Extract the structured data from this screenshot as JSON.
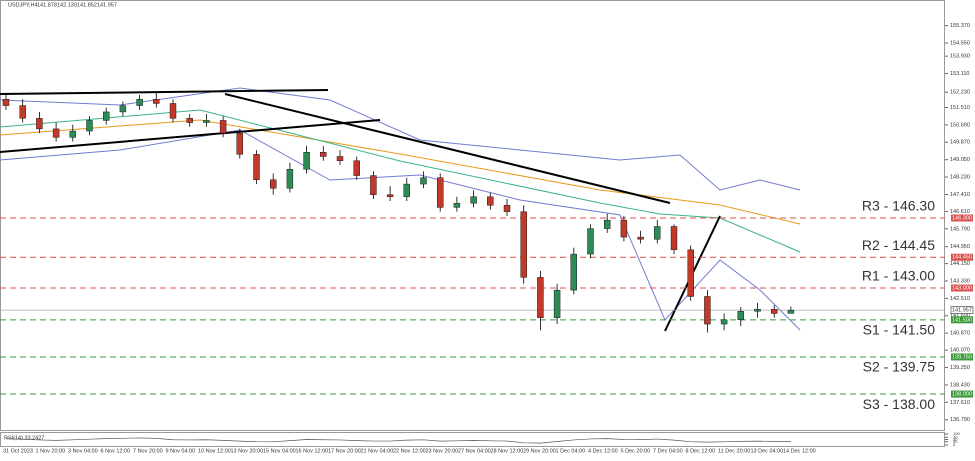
{
  "chart_data": {
    "type": "candlestick",
    "title": "USDJPY,H4",
    "header_values": [
      "141.878",
      "142.130",
      "141.852",
      "141.957"
    ],
    "open": [
      151.9,
      151.6,
      151.0,
      150.5,
      150.1,
      150.4,
      150.9,
      151.3,
      151.6,
      151.9,
      151.7,
      151.0,
      150.8,
      150.9,
      150.3,
      149.3,
      148.1,
      147.7,
      148.6,
      149.4,
      149.2,
      149.0,
      148.3,
      147.4,
      147.3,
      147.9,
      148.2,
      146.8,
      147.0,
      147.3,
      146.9,
      146.6,
      143.5,
      141.6,
      142.9,
      144.6,
      145.8,
      146.2,
      145.4,
      145.3,
      145.9,
      144.8,
      142.6,
      141.3,
      141.5,
      141.9,
      142.0,
      141.8
    ],
    "high": [
      152.2,
      151.9,
      151.3,
      150.8,
      150.7,
      151.1,
      151.5,
      151.8,
      152.1,
      152.2,
      151.9,
      151.2,
      151.2,
      151.1,
      150.5,
      149.5,
      148.4,
      148.9,
      149.7,
      149.7,
      149.5,
      149.2,
      148.5,
      147.8,
      148.2,
      148.5,
      148.4,
      147.3,
      147.6,
      147.5,
      147.2,
      146.9,
      143.8,
      143.2,
      144.9,
      146.0,
      146.5,
      146.4,
      145.7,
      146.2,
      146.0,
      145.0,
      142.9,
      141.8,
      142.1,
      142.3,
      142.2,
      142.13
    ],
    "low": [
      151.4,
      150.8,
      150.3,
      149.9,
      149.9,
      150.2,
      150.7,
      151.1,
      151.4,
      151.5,
      150.8,
      150.6,
      150.6,
      150.1,
      149.1,
      147.9,
      147.4,
      147.5,
      148.4,
      149.0,
      148.8,
      148.1,
      147.2,
      147.1,
      147.1,
      147.7,
      146.6,
      146.6,
      146.8,
      146.7,
      146.4,
      143.2,
      141.0,
      141.3,
      142.7,
      144.4,
      145.6,
      145.2,
      145.1,
      145.1,
      144.6,
      142.4,
      140.9,
      141.0,
      141.2,
      141.6,
      141.6,
      141.85
    ],
    "close": [
      151.6,
      151.0,
      150.5,
      150.1,
      150.4,
      150.9,
      151.3,
      151.6,
      151.9,
      151.7,
      151.0,
      150.8,
      150.9,
      150.3,
      149.3,
      148.1,
      147.7,
      148.6,
      149.4,
      149.2,
      149.0,
      148.3,
      147.4,
      147.3,
      147.9,
      148.2,
      146.8,
      147.0,
      147.3,
      146.9,
      146.6,
      143.5,
      141.6,
      142.9,
      144.6,
      145.8,
      146.2,
      145.4,
      145.3,
      145.9,
      144.8,
      142.6,
      141.3,
      141.5,
      141.9,
      142.0,
      141.8,
      141.957
    ],
    "ylim": [
      136.4,
      156.2
    ],
    "yticks": [
      {
        "value": 155.37,
        "label": "155.370"
      },
      {
        "value": 154.55,
        "label": "154.550"
      },
      {
        "value": 153.93,
        "label": "153.930"
      },
      {
        "value": 153.11,
        "label": "153.110"
      },
      {
        "value": 152.23,
        "label": "152.230"
      },
      {
        "value": 151.51,
        "label": "151.510"
      },
      {
        "value": 150.69,
        "label": "150.690"
      },
      {
        "value": 149.87,
        "label": "149.870"
      },
      {
        "value": 149.05,
        "label": "149.050"
      },
      {
        "value": 148.23,
        "label": "148.230"
      },
      {
        "value": 147.41,
        "label": "147.410"
      },
      {
        "value": 146.61,
        "label": "146.610"
      },
      {
        "value": 145.79,
        "label": "145.790"
      },
      {
        "value": 144.95,
        "label": "144.950"
      },
      {
        "value": 144.15,
        "label": "144.150"
      },
      {
        "value": 143.33,
        "label": "143.330"
      },
      {
        "value": 142.51,
        "label": "142.510"
      },
      {
        "value": 141.69,
        "label": "141.690"
      },
      {
        "value": 140.87,
        "label": "140.870"
      },
      {
        "value": 140.07,
        "label": "140.070"
      },
      {
        "value": 139.25,
        "label": "139.250"
      },
      {
        "value": 138.43,
        "label": "138.430"
      },
      {
        "value": 137.61,
        "label": "137.610"
      },
      {
        "value": 136.79,
        "label": "136.790"
      }
    ],
    "levels": [
      {
        "label": "R3 - 146.30",
        "value": 146.3,
        "tag": "146.300",
        "color": "#d9534f"
      },
      {
        "label": "R2 - 144.45",
        "value": 144.45,
        "tag": "144.450",
        "color": "#d9534f"
      },
      {
        "label": "R1 - 143.00",
        "value": 143.0,
        "tag": "143.000",
        "color": "#d9534f"
      },
      {
        "label": "S1 - 141.50",
        "value": 141.5,
        "tag": "141.500",
        "color": "#3a9a3a"
      },
      {
        "label": "S2 - 139.75",
        "value": 139.75,
        "tag": "139.750",
        "color": "#3a9a3a"
      },
      {
        "label": "S3 - 138.00",
        "value": 138.0,
        "tag": "138.000",
        "color": "#3a9a3a"
      }
    ],
    "current_price": {
      "value": 141.957,
      "tag": "141.957"
    },
    "x_labels": [
      "31 Oct 2023",
      "1 Nov 20:00",
      "3 Nov 04:00",
      "6 Nov 12:00",
      "7 Nov 20:00",
      "9 Nov 04:00",
      "10 Nov 12:00",
      "13 Nov 20:00",
      "15 Nov 04:00",
      "16 Nov 12:00",
      "17 Nov 20:00",
      "21 Nov 04:00",
      "22 Nov 12:00",
      "23 Nov 20:00",
      "27 Nov 04:00",
      "28 Nov 12:00",
      "29 Nov 20:00",
      "1 Dec 04:00",
      "4 Dec 12:00",
      "5 Dec 20:00",
      "7 Dec 04:00",
      "8 Dec 12:00",
      "11 Dec 20:00",
      "13 Dec 04:00",
      "14 Dec 12:00"
    ],
    "rsi": {
      "title": "RSI(14) 33.2427",
      "values": [
        58,
        52,
        46,
        42,
        47,
        53,
        58,
        61,
        64,
        60,
        48,
        46,
        48,
        42,
        35,
        30,
        29,
        40,
        50,
        48,
        46,
        40,
        36,
        36,
        44,
        47,
        35,
        38,
        42,
        38,
        36,
        20,
        17,
        32,
        46,
        55,
        58,
        50,
        49,
        54,
        44,
        30,
        26,
        29,
        33,
        35,
        33,
        33.2427
      ],
      "ylim": [
        0,
        100
      ],
      "yticks": [
        100,
        70,
        50,
        30,
        0
      ]
    }
  }
}
